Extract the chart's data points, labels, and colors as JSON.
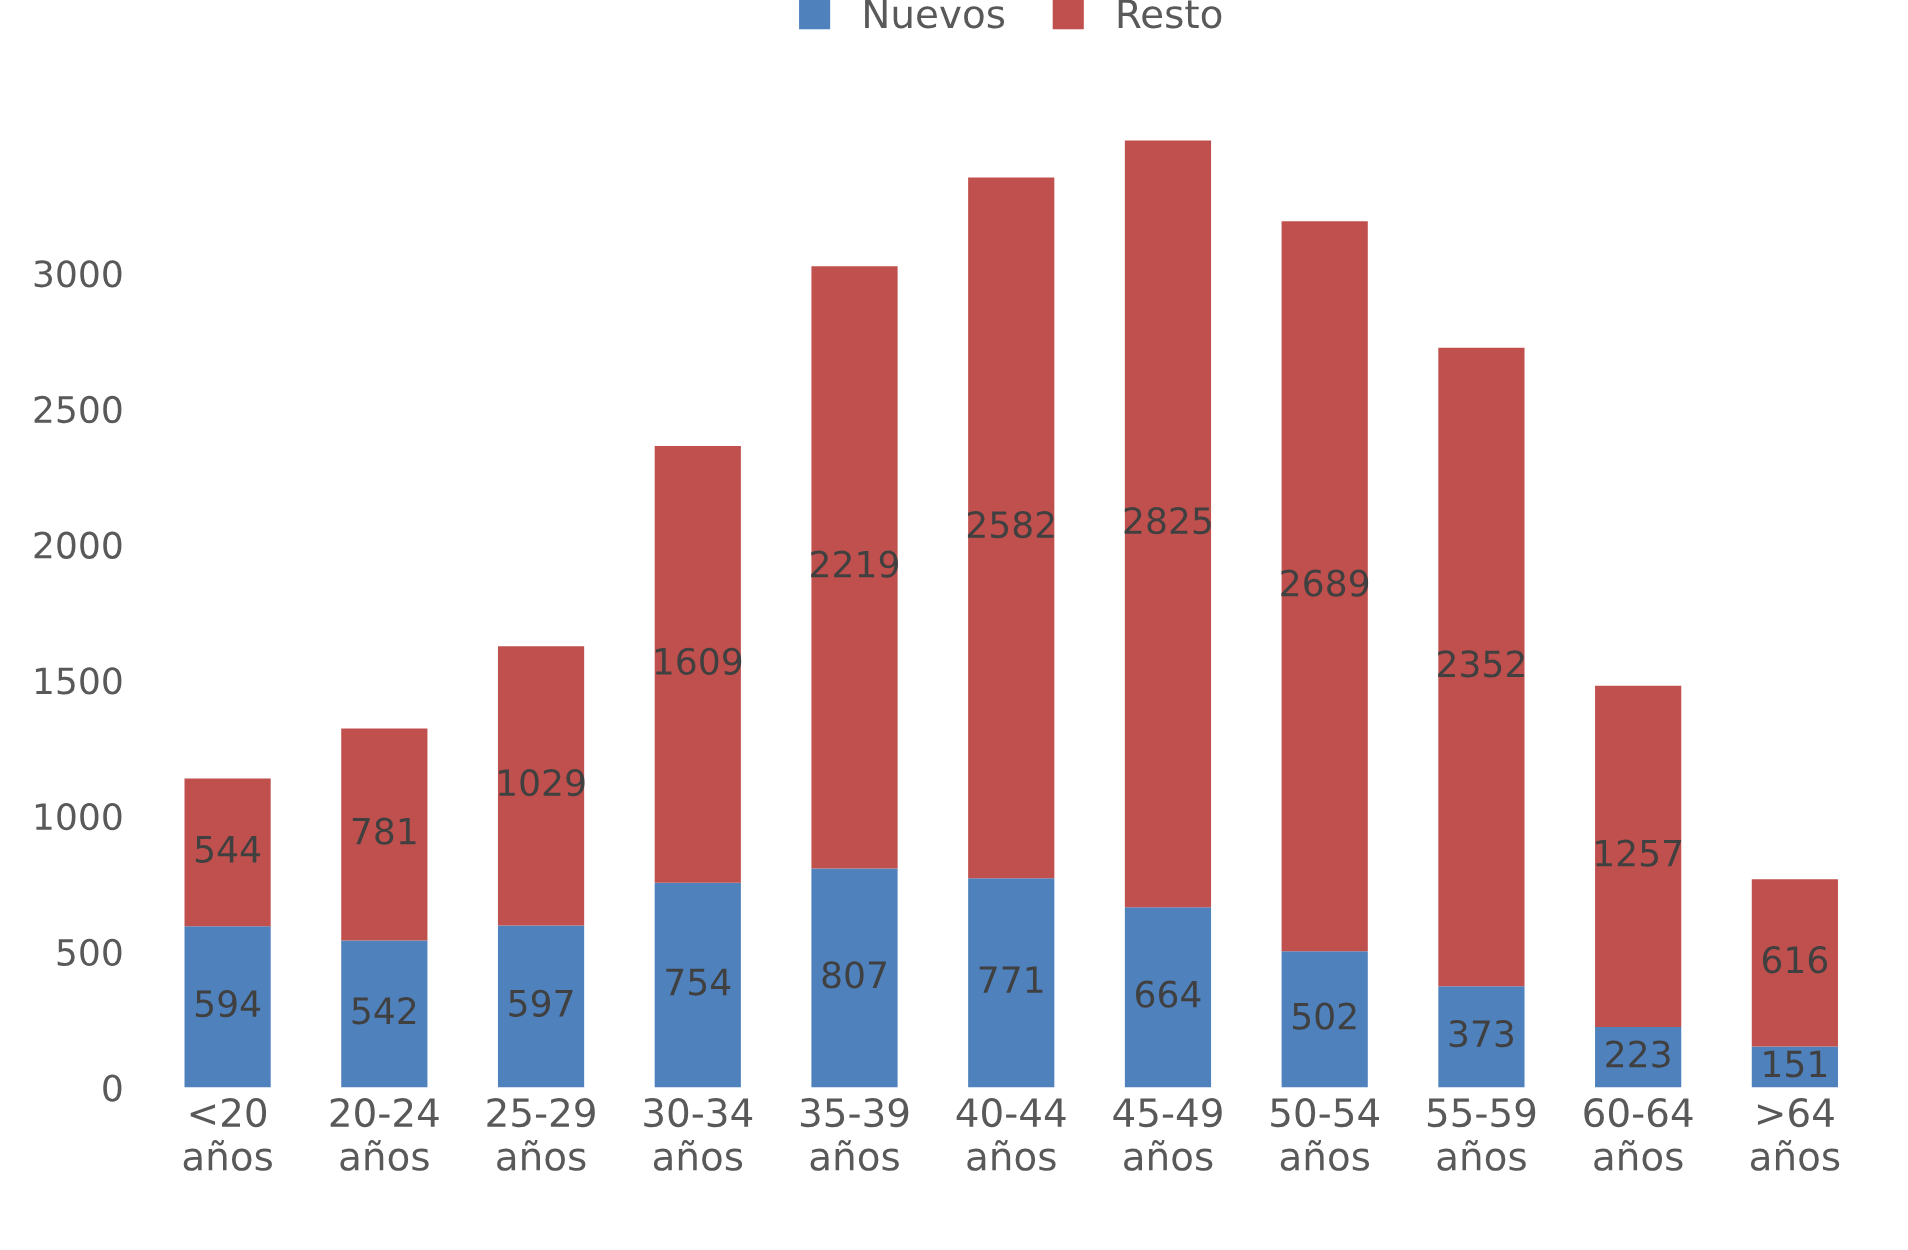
{
  "chart_data": {
    "type": "bar",
    "stacked": true,
    "categories": [
      "<20\naños",
      "20-24\naños",
      "25-29\naños",
      "30-34\naños",
      "35-39\naños",
      "40-44\naños",
      "45-49\naños",
      "50-54\naños",
      "55-59\naños",
      "60-64\naños",
      ">64\naños"
    ],
    "series": [
      {
        "name": "Nuevos",
        "color": "#4f81bd",
        "values": [
          594,
          542,
          597,
          754,
          807,
          771,
          664,
          502,
          373,
          223,
          151
        ]
      },
      {
        "name": "Resto",
        "color": "#c0504d",
        "values": [
          544,
          781,
          1029,
          1609,
          2219,
          2582,
          2825,
          2689,
          2352,
          1257,
          616
        ]
      }
    ],
    "ylim": [
      0,
      3500
    ],
    "yticks": [
      0,
      500,
      1000,
      1500,
      2000,
      2500,
      3000
    ],
    "grid": false,
    "legend": "top",
    "data_labels": true
  }
}
